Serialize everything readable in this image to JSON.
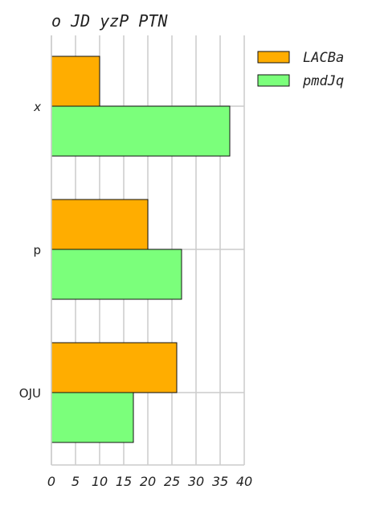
{
  "chart_data": {
    "type": "bar",
    "orientation": "horizontal",
    "title": "o JD yzP PTN",
    "xlabel": "",
    "ylabel": "",
    "categories": [
      "x",
      "p",
      "OJU"
    ],
    "series": [
      {
        "name": "LACBa",
        "color": "#ffad00",
        "values": [
          10,
          20,
          26
        ]
      },
      {
        "name": "pmdJq",
        "color": "#7bff7b",
        "values": [
          37,
          27,
          17
        ]
      }
    ],
    "xlim": [
      0,
      40
    ],
    "xticks": [
      0,
      5,
      10,
      15,
      20,
      25,
      30,
      35,
      40
    ],
    "xtick_labels": [
      "0",
      "5",
      "10",
      "15",
      "20",
      "25",
      "30",
      "35",
      "40"
    ],
    "grid": true,
    "legend_position": "top-right outside"
  }
}
